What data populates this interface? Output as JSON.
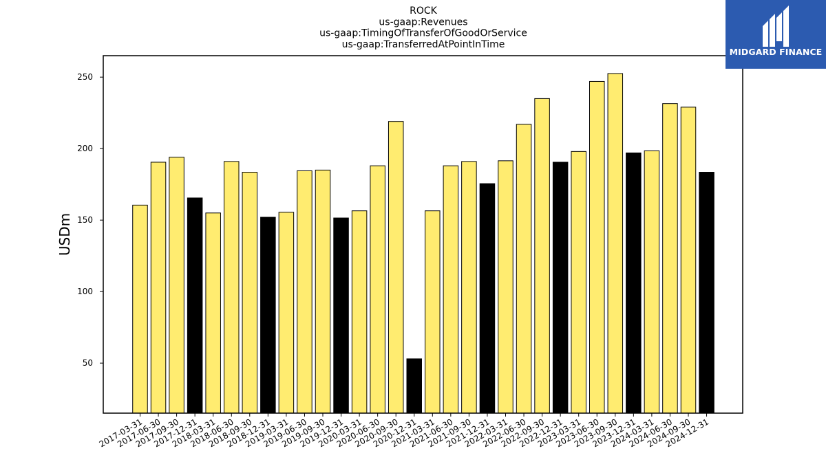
{
  "brand": {
    "name": "MIDGARD FINANCE",
    "bg_color": "#2c5bb0"
  },
  "colors": {
    "regular_bar": "#ffec70",
    "annual_bar": "#000000",
    "edge": "#000000"
  },
  "chart_data": {
    "type": "bar",
    "title_lines": [
      "ROCK",
      "us-gaap:Revenues",
      "us-gaap:TimingOfTransferOfGoodOrService",
      "us-gaap:TransferredAtPointInTime"
    ],
    "ylabel": "USDm",
    "xlabel": "",
    "ylim": [
      15,
      265
    ],
    "yticks": [
      50,
      100,
      150,
      200,
      250
    ],
    "categories": [
      "2017-03-31",
      "2017-06-30",
      "2017-09-30",
      "2017-12-31",
      "2018-03-31",
      "2018-06-30",
      "2018-09-30",
      "2018-12-31",
      "2019-03-31",
      "2019-06-30",
      "2019-09-30",
      "2019-12-31",
      "2020-03-31",
      "2020-06-30",
      "2020-09-30",
      "2020-12-31",
      "2021-03-31",
      "2021-06-30",
      "2021-09-30",
      "2021-12-31",
      "2022-03-31",
      "2022-06-30",
      "2022-09-30",
      "2022-12-31",
      "2023-03-31",
      "2023-06-30",
      "2023-09-30",
      "2023-12-31",
      "2024-03-31",
      "2024-06-30",
      "2024-09-30",
      "2024-12-31"
    ],
    "values": [
      160.5,
      190.5,
      194,
      165.5,
      155,
      191,
      183.5,
      152,
      155.5,
      184.5,
      185,
      151.5,
      156.5,
      188,
      219,
      53,
      156.5,
      188,
      191,
      175.5,
      191.5,
      217,
      235,
      190.5,
      198,
      247,
      252.5,
      197,
      198.5,
      231.5,
      229,
      183.5
    ],
    "annual_flags": [
      false,
      false,
      false,
      true,
      false,
      false,
      false,
      true,
      false,
      false,
      false,
      true,
      false,
      false,
      false,
      true,
      false,
      false,
      false,
      true,
      false,
      false,
      false,
      true,
      false,
      false,
      false,
      true,
      false,
      false,
      false,
      true
    ],
    "grid": false,
    "legend": "none"
  }
}
